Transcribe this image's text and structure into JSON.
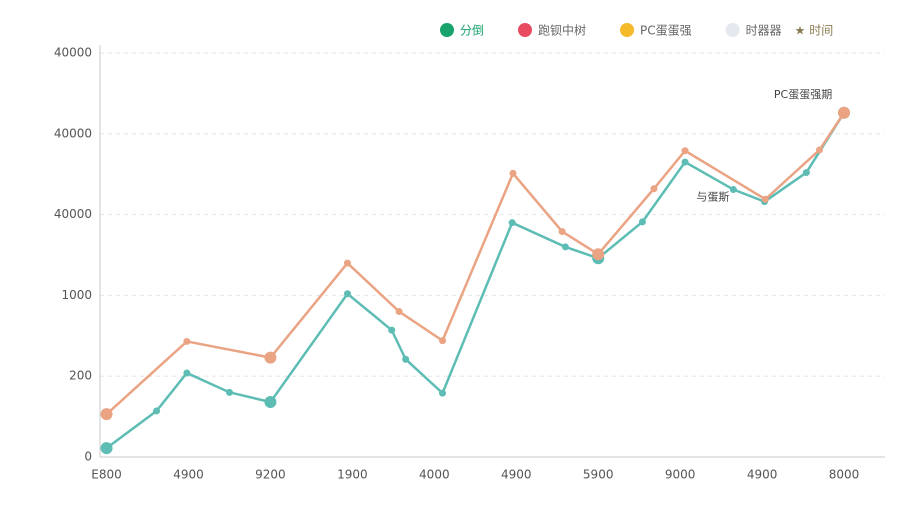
{
  "chart_data": {
    "type": "line",
    "legend": [
      {
        "name": "分倒",
        "color": "#17a36b"
      },
      {
        "name": "跑钡中树",
        "color": "#e84a5f"
      },
      {
        "name": "PC蛋蛋强",
        "color": "#f5b92a"
      },
      {
        "name": "时器器",
        "color": "#e6e8f0"
      }
    ],
    "legend_note": "★ 时间",
    "annotations": [
      {
        "text": "PC蛋蛋强期",
        "x": 8.5,
        "y": 4480
      },
      {
        "text": "与蛋斯",
        "x": 7.4,
        "y": 3210
      }
    ],
    "xlim": [
      -0.08,
      9.5
    ],
    "xticks": [
      {
        "value": 0,
        "label": "E800"
      },
      {
        "value": 1,
        "label": "4900"
      },
      {
        "value": 2,
        "label": "9200"
      },
      {
        "value": 3,
        "label": "1900"
      },
      {
        "value": 4,
        "label": "4000"
      },
      {
        "value": 5,
        "label": "4900"
      },
      {
        "value": 6,
        "label": "5900"
      },
      {
        "value": 7,
        "label": "9000"
      },
      {
        "value": 8,
        "label": "4900"
      },
      {
        "value": 9,
        "label": "8000"
      }
    ],
    "ylim": [
      0,
      5000
    ],
    "yticks": [
      0,
      {
        "value": 1000,
        "label": "200"
      },
      {
        "value": 2000,
        "label": "1000"
      },
      {
        "value": 3000,
        "label": "40000"
      },
      {
        "value": 4000,
        "label": "40000"
      },
      {
        "value": 5000,
        "label": "40000"
      }
    ],
    "grid": true,
    "series": [
      {
        "color": "#5dbdb5",
        "x": [
          0,
          0.61,
          0.98,
          1.5,
          2.0,
          2.94,
          3.48,
          3.65,
          4.1,
          4.95,
          5.6,
          6.0,
          6.54,
          7.06,
          7.65,
          8.03,
          8.54,
          9.0
        ],
        "values": [
          110,
          570,
          1040,
          800,
          680,
          2020,
          1570,
          1210,
          790,
          2900,
          2600,
          2460,
          2910,
          3650,
          3310,
          3160,
          3520,
          4260
        ]
      },
      {
        "color": "#eaa383",
        "x": [
          0,
          0.98,
          2.0,
          2.94,
          3.57,
          4.1,
          4.96,
          5.56,
          6.0,
          6.68,
          7.06,
          8.04,
          8.7,
          9.0
        ],
        "values": [
          530,
          1430,
          1230,
          2400,
          1800,
          1440,
          3510,
          2790,
          2510,
          3320,
          3790,
          3190,
          3800,
          4260
        ]
      }
    ]
  }
}
